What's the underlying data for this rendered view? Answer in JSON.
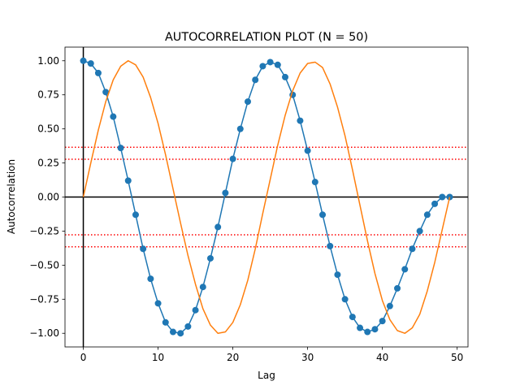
{
  "chart_data": {
    "type": "line",
    "title": "AUTOCORRELATION PLOT (N = 50)",
    "xlabel": "Lag",
    "ylabel": "Autocorrelation",
    "xlim": [
      -2.45,
      51.45
    ],
    "ylim": [
      -1.1,
      1.1
    ],
    "xticks": [
      0,
      10,
      20,
      30,
      40,
      50
    ],
    "yticks": [
      -1.0,
      -0.75,
      -0.5,
      -0.25,
      0.0,
      0.25,
      0.5,
      0.75,
      1.0
    ],
    "xtick_labels": [
      "0",
      "10",
      "20",
      "30",
      "40",
      "50"
    ],
    "ytick_labels": [
      "−1.00",
      "−0.75",
      "−0.50",
      "−0.25",
      "0.00",
      "0.25",
      "0.50",
      "0.75",
      "1.00"
    ],
    "grid": false,
    "reference_lines": {
      "horizontal_zero": 0,
      "vertical_zero": 0,
      "confidence_bands": [
        0.277,
        0.365,
        -0.277,
        -0.365
      ]
    },
    "series": [
      {
        "color": "#1f77b4",
        "marker": "circle",
        "x": [
          0,
          1,
          2,
          3,
          4,
          5,
          6,
          7,
          8,
          9,
          10,
          11,
          12,
          13,
          14,
          15,
          16,
          17,
          18,
          19,
          20,
          21,
          22,
          23,
          24,
          25,
          26,
          27,
          28,
          29,
          30,
          31,
          32,
          33,
          34,
          35,
          36,
          37,
          38,
          39,
          40,
          41,
          42,
          43,
          44,
          45,
          46,
          47,
          48,
          49
        ],
        "values": [
          1.0,
          0.98,
          0.91,
          0.77,
          0.59,
          0.36,
          0.12,
          -0.13,
          -0.38,
          -0.6,
          -0.78,
          -0.92,
          -0.99,
          -1.0,
          -0.95,
          -0.83,
          -0.66,
          -0.45,
          -0.22,
          0.03,
          0.28,
          0.5,
          0.7,
          0.86,
          0.96,
          0.99,
          0.97,
          0.88,
          0.75,
          0.56,
          0.34,
          0.11,
          -0.13,
          -0.36,
          -0.57,
          -0.75,
          -0.88,
          -0.96,
          -0.99,
          -0.97,
          -0.91,
          -0.8,
          -0.67,
          -0.53,
          -0.38,
          -0.25,
          -0.13,
          -0.05,
          0.0,
          0.0
        ]
      },
      {
        "color": "#ff7f0e",
        "marker": "none",
        "x": [
          0,
          1,
          2,
          3,
          4,
          5,
          6,
          7,
          8,
          9,
          10,
          11,
          12,
          13,
          14,
          15,
          16,
          17,
          18,
          19,
          20,
          21,
          22,
          23,
          24,
          25,
          26,
          27,
          28,
          29,
          30,
          31,
          32,
          33,
          34,
          35,
          36,
          37,
          38,
          39,
          40,
          41,
          42,
          43,
          44,
          45,
          46,
          47,
          48,
          49
        ],
        "values": [
          0.0,
          0.25,
          0.49,
          0.7,
          0.86,
          0.96,
          1.0,
          0.97,
          0.88,
          0.73,
          0.54,
          0.31,
          0.06,
          -0.19,
          -0.43,
          -0.64,
          -0.82,
          -0.94,
          -1.0,
          -0.99,
          -0.92,
          -0.79,
          -0.61,
          -0.38,
          -0.12,
          0.13,
          0.38,
          0.6,
          0.78,
          0.91,
          0.98,
          0.99,
          0.95,
          0.83,
          0.66,
          0.45,
          0.2,
          -0.06,
          -0.32,
          -0.56,
          -0.76,
          -0.9,
          -0.98,
          -1.0,
          -0.96,
          -0.86,
          -0.69,
          -0.48,
          -0.24,
          0.0
        ]
      }
    ],
    "colors": {
      "series1": "#1f77b4",
      "series2": "#ff7f0e",
      "confidence": "#ff0000",
      "zero_lines": "#000000"
    }
  }
}
